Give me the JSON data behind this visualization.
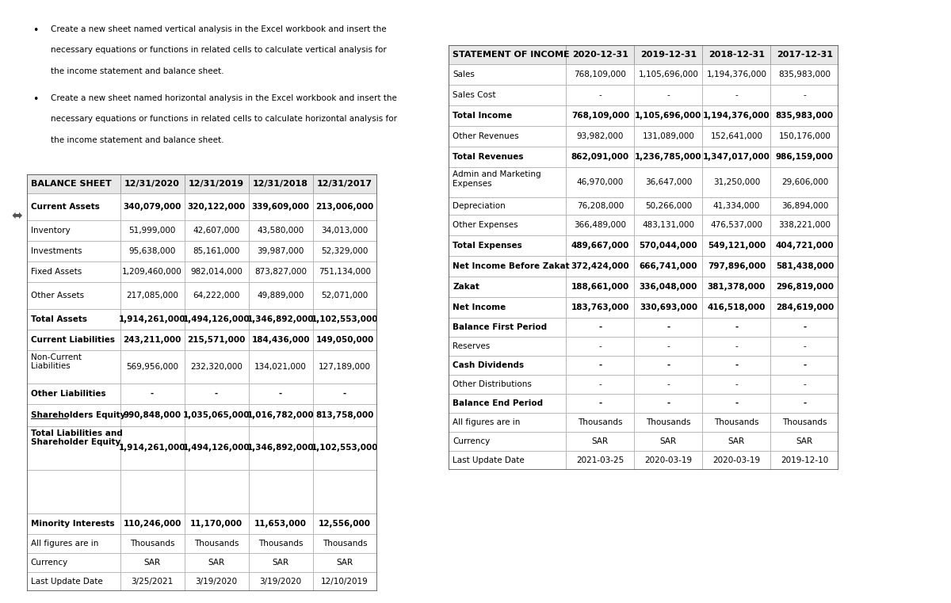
{
  "bullet_texts": [
    "Create a new sheet named vertical analysis in the Excel workbook and insert the\nnecessary equations or functions in related cells to calculate vertical analysis for\nthe income statement and balance sheet.",
    "Create a new sheet named horizontal analysis in the Excel workbook and insert the\nnecessary equations or functions in related cells to calculate horizontal analysis for\nthe income statement and balance sheet."
  ],
  "balance_sheet": {
    "headers": [
      "BALANCE SHEET",
      "12/31/2020",
      "12/31/2019",
      "12/31/2018",
      "12/31/2017"
    ],
    "rows": [
      {
        "label": "Current Assets",
        "vals": [
          "340,079,000",
          "320,122,000",
          "339,609,000",
          "213,006,000"
        ],
        "bold": true,
        "multi": false
      },
      {
        "label": "Inventory",
        "vals": [
          "51,999,000",
          "42,607,000",
          "43,580,000",
          "34,013,000"
        ],
        "bold": false,
        "multi": false
      },
      {
        "label": "Investments",
        "vals": [
          "95,638,000",
          "85,161,000",
          "39,987,000",
          "52,329,000"
        ],
        "bold": false,
        "multi": false
      },
      {
        "label": "Fixed Assets",
        "vals": [
          "1,209,460,000",
          "982,014,000",
          "873,827,000",
          "751,134,000"
        ],
        "bold": false,
        "multi": false
      },
      {
        "label": "Other Assets",
        "vals": [
          "217,085,000",
          "64,222,000",
          "49,889,000",
          "52,071,000"
        ],
        "bold": false,
        "multi": false
      },
      {
        "label": "Total Assets",
        "vals": [
          "1,914,261,000",
          "1,494,126,000",
          "1,346,892,000",
          "1,102,553,000"
        ],
        "bold": true,
        "multi": false
      },
      {
        "label": "Current Liabilities",
        "vals": [
          "243,211,000",
          "215,571,000",
          "184,436,000",
          "149,050,000"
        ],
        "bold": true,
        "multi": false
      },
      {
        "label": "Non-Current\nLiabilities",
        "vals": [
          "569,956,000",
          "232,320,000",
          "134,021,000",
          "127,189,000"
        ],
        "bold": false,
        "multi": true
      },
      {
        "label": "Other Liabilities",
        "vals": [
          "-",
          "-",
          "-",
          "-"
        ],
        "bold": true,
        "multi": false
      },
      {
        "label": "Shareholders Equity",
        "vals": [
          "990,848,000",
          "1,035,065,000",
          "1,016,782,000",
          "813,758,000"
        ],
        "bold": true,
        "multi": false,
        "underline_word": "Shareholders"
      },
      {
        "label": "Total Liabilities and\nShareholder Equity",
        "vals": [
          "1,914,261,000",
          "1,494,126,000",
          "1,346,892,000",
          "1,102,553,000"
        ],
        "bold": true,
        "multi": true
      },
      {
        "label": "",
        "vals": [
          "",
          "",
          "",
          ""
        ],
        "bold": false,
        "multi": false
      },
      {
        "label": "Minority Interests",
        "vals": [
          "110,246,000",
          "11,170,000",
          "11,653,000",
          "12,556,000"
        ],
        "bold": true,
        "multi": false
      },
      {
        "label": "All figures are in",
        "vals": [
          "Thousands",
          "Thousands",
          "Thousands",
          "Thousands"
        ],
        "bold": false,
        "multi": false
      },
      {
        "label": "Currency",
        "vals": [
          "SAR",
          "SAR",
          "SAR",
          "SAR"
        ],
        "bold": false,
        "multi": false
      },
      {
        "label": "Last Update Date",
        "vals": [
          "3/25/2021",
          "3/19/2020",
          "3/19/2020",
          "12/10/2019"
        ],
        "bold": false,
        "multi": false
      }
    ]
  },
  "income_statement": {
    "headers": [
      "STATEMENT OF INCOME",
      "2020-12-31",
      "2019-12-31",
      "2018-12-31",
      "2017-12-31"
    ],
    "rows": [
      {
        "label": "Sales",
        "vals": [
          "768,109,000",
          "1,105,696,000",
          "1,194,376,000",
          "835,983,000"
        ],
        "bold": false,
        "multi": false
      },
      {
        "label": "Sales Cost",
        "vals": [
          "-",
          "-",
          "-",
          "-"
        ],
        "bold": false,
        "multi": false
      },
      {
        "label": "Total Income",
        "vals": [
          "768,109,000",
          "1,105,696,000",
          "1,194,376,000",
          "835,983,000"
        ],
        "bold": true,
        "multi": false
      },
      {
        "label": "Other Revenues",
        "vals": [
          "93,982,000",
          "131,089,000",
          "152,641,000",
          "150,176,000"
        ],
        "bold": false,
        "multi": false
      },
      {
        "label": "Total Revenues",
        "vals": [
          "862,091,000",
          "1,236,785,000",
          "1,347,017,000",
          "986,159,000"
        ],
        "bold": true,
        "multi": false
      },
      {
        "label": "Admin and Marketing\nExpenses",
        "vals": [
          "46,970,000",
          "36,647,000",
          "31,250,000",
          "29,606,000"
        ],
        "bold": false,
        "multi": true
      },
      {
        "label": "Depreciation",
        "vals": [
          "76,208,000",
          "50,266,000",
          "41,334,000",
          "36,894,000"
        ],
        "bold": false,
        "multi": false
      },
      {
        "label": "Other Expenses",
        "vals": [
          "366,489,000",
          "483,131,000",
          "476,537,000",
          "338,221,000"
        ],
        "bold": false,
        "multi": false
      },
      {
        "label": "Total Expenses",
        "vals": [
          "489,667,000",
          "570,044,000",
          "549,121,000",
          "404,721,000"
        ],
        "bold": true,
        "multi": false
      },
      {
        "label": "Net Income Before Zakat",
        "vals": [
          "372,424,000",
          "666,741,000",
          "797,896,000",
          "581,438,000"
        ],
        "bold": true,
        "multi": false
      },
      {
        "label": "Zakat",
        "vals": [
          "188,661,000",
          "336,048,000",
          "381,378,000",
          "296,819,000"
        ],
        "bold": true,
        "multi": false
      },
      {
        "label": "Net Income",
        "vals": [
          "183,763,000",
          "330,693,000",
          "416,518,000",
          "284,619,000"
        ],
        "bold": true,
        "multi": false
      },
      {
        "label": "Balance First Period",
        "vals": [
          "-",
          "-",
          "-",
          "-"
        ],
        "bold": true,
        "multi": false
      },
      {
        "label": "Reserves",
        "vals": [
          "-",
          "-",
          "-",
          "-"
        ],
        "bold": false,
        "multi": false
      },
      {
        "label": "Cash Dividends",
        "vals": [
          "-",
          "-",
          "-",
          "-"
        ],
        "bold": true,
        "multi": false
      },
      {
        "label": "Other Distributions",
        "vals": [
          "-",
          "-",
          "-",
          "-"
        ],
        "bold": false,
        "multi": false
      },
      {
        "label": "Balance End Period",
        "vals": [
          "-",
          "-",
          "-",
          "-"
        ],
        "bold": true,
        "multi": false
      },
      {
        "label": "All figures are in",
        "vals": [
          "Thousands",
          "Thousands",
          "Thousands",
          "Thousands"
        ],
        "bold": false,
        "multi": false
      },
      {
        "label": "Currency",
        "vals": [
          "SAR",
          "SAR",
          "SAR",
          "SAR"
        ],
        "bold": false,
        "multi": false
      },
      {
        "label": "Last Update Date",
        "vals": [
          "2021-03-25",
          "2020-03-19",
          "2020-03-19",
          "2019-12-10"
        ],
        "bold": false,
        "multi": false
      }
    ]
  },
  "bg_color": "#ffffff",
  "font_size": 7.5,
  "header_font_size": 8.0,
  "bold_font_size": 7.5,
  "header_bg": "#e8e8e8",
  "row_bg": "#ffffff",
  "border_color": "#999999",
  "outer_border": "#555555"
}
